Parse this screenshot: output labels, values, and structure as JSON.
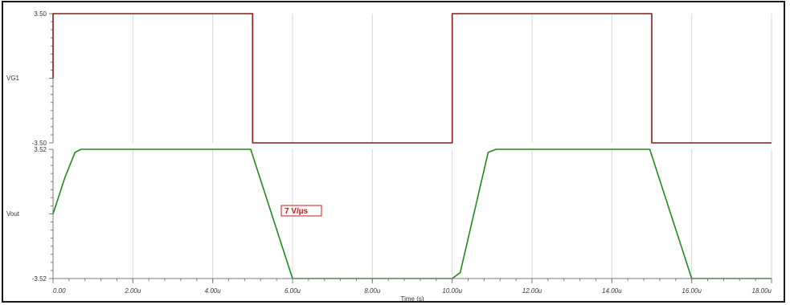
{
  "chart_data": [
    {
      "type": "line",
      "series": [
        {
          "name": "VG1",
          "color": "#8b1a1a",
          "x": [
            0,
            0,
            5.0,
            5.0,
            10.0,
            10.0,
            15.0,
            15.0,
            18.0
          ],
          "y": [
            0,
            3.5,
            3.5,
            -3.5,
            -3.5,
            3.5,
            3.5,
            -3.5,
            -3.5
          ]
        }
      ],
      "y_tick_labels": [
        "3.50",
        "-3.50"
      ],
      "ylim": [
        -3.5,
        3.5
      ],
      "xlim": [
        0,
        18
      ],
      "grid": true
    },
    {
      "type": "line",
      "series": [
        {
          "name": "Vout",
          "color": "#1e8c1e",
          "x": [
            0,
            0.3,
            0.55,
            0.7,
            4.95,
            6.0,
            10.0,
            10.2,
            10.9,
            11.1,
            11.3,
            14.95,
            16.0,
            18.0
          ],
          "y": [
            0,
            2.0,
            3.35,
            3.52,
            3.52,
            -3.52,
            -3.52,
            -3.2,
            3.35,
            3.52,
            3.52,
            3.52,
            -3.52,
            -3.52
          ]
        }
      ],
      "y_tick_labels": [
        "3.52",
        "-3.52"
      ],
      "ylim": [
        -3.52,
        3.52
      ],
      "xlim": [
        0,
        18
      ],
      "grid": true,
      "annotation": {
        "text": "7  V/µs",
        "color": "#cc1a1a"
      }
    }
  ],
  "x_axis": {
    "tick_values": [
      0,
      2,
      4,
      6,
      8,
      10,
      12,
      14,
      16,
      18
    ],
    "tick_labels": [
      "0.00",
      "2.00u",
      "4.00u",
      "6.00u",
      "8.00u",
      "10.00u",
      "12.00u",
      "14.00u",
      "16.00u",
      "18.00u"
    ],
    "xlabel": "Time (s)"
  },
  "colors": {
    "grid": "#d8d8d8",
    "axis": "#7a7a7a",
    "frame": "#1a1a1a"
  }
}
